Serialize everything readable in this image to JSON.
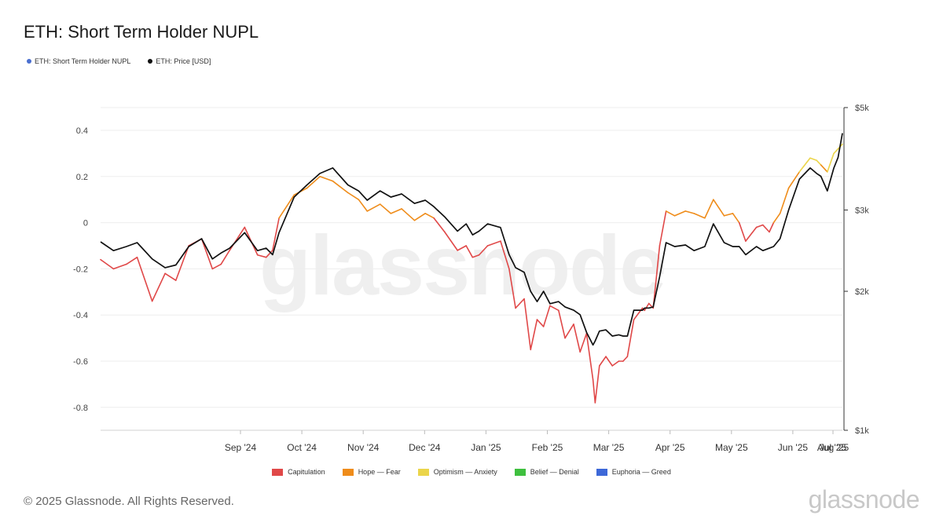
{
  "page": {
    "footer": "© 2025 Glassnode. All Rights Reserved.",
    "brand": "glassnode",
    "watermark": "glassnode"
  },
  "chart_data": {
    "type": "line",
    "title": "ETH: Short Term Holder NUPL",
    "legend": [
      {
        "label": "ETH: Short Term Holder NUPL",
        "color": "#4a6fd0"
      },
      {
        "label": "ETH: Price [USD]",
        "color": "#111111"
      }
    ],
    "zones": [
      {
        "label": "Capitulation",
        "color": "#e04848"
      },
      {
        "label": "Hope — Fear",
        "color": "#ef8c1a"
      },
      {
        "label": "Optimism — Anxiety",
        "color": "#ebd54a"
      },
      {
        "label": "Belief — Denial",
        "color": "#3fc03f"
      },
      {
        "label": "Euphoria — Greed",
        "color": "#3d68d8"
      }
    ],
    "x_ticks": [
      "Sep '24",
      "Oct '24",
      "Nov '24",
      "Dec '24",
      "Jan '25",
      "Feb '25",
      "Mar '25",
      "Apr '25",
      "May '25",
      "Jun '25",
      "Jul '25",
      "Aug '25"
    ],
    "x_range": [
      0,
      345
    ],
    "x_tick_positions": [
      20,
      50,
      81,
      111,
      142,
      173,
      201,
      232,
      262,
      293,
      323,
      354
    ],
    "left_axis": {
      "ticks": [
        "0.4",
        "0.2",
        "0",
        "-0.2",
        "-0.4",
        "-0.6",
        "-0.8"
      ],
      "tick_values": [
        0.4,
        0.2,
        0,
        -0.2,
        -0.4,
        -0.6,
        -0.8
      ],
      "ylim": [
        -0.9,
        0.5
      ]
    },
    "right_axis": {
      "ticks": [
        "$5k",
        "$3k",
        "$2k",
        "$1k"
      ],
      "tick_values": [
        5000,
        3000,
        2000,
        1000
      ],
      "scale": "log",
      "ylim": [
        1000,
        5000
      ]
    },
    "series": [
      {
        "name": "ETH: Short Term Holder NUPL",
        "x": [
          0,
          6,
          12,
          17,
          24,
          30,
          35,
          41,
          47,
          52,
          56,
          60,
          67,
          73,
          77,
          80,
          83,
          90,
          96,
          102,
          108,
          115,
          120,
          124,
          130,
          135,
          140,
          146,
          151,
          155,
          160,
          166,
          170,
          173,
          176,
          180,
          186,
          190,
          193,
          197,
          200,
          203,
          206,
          209,
          213,
          216,
          220,
          223,
          226,
          229,
          230,
          232,
          235,
          238,
          241,
          243,
          245,
          248,
          252,
          253,
          255,
          257,
          260,
          263,
          267,
          272,
          276,
          281,
          285,
          290,
          294,
          297,
          300,
          305,
          308,
          311,
          313,
          316,
          320,
          325,
          330,
          333,
          335,
          338,
          341,
          343,
          345
        ],
        "values": [
          -0.16,
          -0.2,
          -0.18,
          -0.15,
          -0.34,
          -0.22,
          -0.25,
          -0.1,
          -0.07,
          -0.2,
          -0.18,
          -0.12,
          -0.02,
          -0.14,
          -0.15,
          -0.12,
          0.02,
          0.12,
          0.15,
          0.2,
          0.18,
          0.13,
          0.1,
          0.05,
          0.08,
          0.04,
          0.06,
          0.01,
          0.04,
          0.02,
          -0.04,
          -0.12,
          -0.1,
          -0.15,
          -0.14,
          -0.1,
          -0.08,
          -0.2,
          -0.37,
          -0.33,
          -0.55,
          -0.42,
          -0.45,
          -0.36,
          -0.38,
          -0.5,
          -0.44,
          -0.56,
          -0.48,
          -0.68,
          -0.78,
          -0.62,
          -0.58,
          -0.62,
          -0.6,
          -0.6,
          -0.58,
          -0.42,
          -0.37,
          -0.38,
          -0.35,
          -0.37,
          -0.1,
          0.05,
          0.03,
          0.05,
          0.04,
          0.02,
          0.1,
          0.03,
          0.04,
          0.0,
          -0.08,
          -0.02,
          -0.01,
          -0.04,
          0.0,
          0.04,
          0.15,
          0.22,
          0.28,
          0.27,
          0.25,
          0.22,
          0.3,
          0.32,
          0.34
        ],
        "zone_color_by_value": true
      },
      {
        "name": "ETH: Price [USD]",
        "x": [
          0,
          6,
          12,
          17,
          24,
          30,
          35,
          41,
          47,
          52,
          56,
          60,
          67,
          73,
          77,
          80,
          83,
          90,
          96,
          102,
          108,
          115,
          120,
          124,
          130,
          135,
          140,
          146,
          151,
          155,
          160,
          166,
          170,
          173,
          176,
          180,
          186,
          190,
          193,
          197,
          200,
          203,
          206,
          209,
          213,
          216,
          220,
          223,
          226,
          229,
          230,
          232,
          235,
          238,
          241,
          243,
          245,
          248,
          252,
          253,
          255,
          257,
          260,
          263,
          267,
          272,
          276,
          281,
          285,
          290,
          294,
          297,
          300,
          305,
          308,
          311,
          313,
          316,
          320,
          325,
          330,
          333,
          335,
          338,
          341,
          343,
          345
        ],
        "values": [
          2560,
          2450,
          2500,
          2550,
          2350,
          2250,
          2280,
          2500,
          2600,
          2350,
          2420,
          2480,
          2680,
          2450,
          2480,
          2400,
          2680,
          3200,
          3400,
          3600,
          3700,
          3400,
          3300,
          3150,
          3300,
          3200,
          3250,
          3100,
          3150,
          3050,
          2900,
          2700,
          2800,
          2650,
          2700,
          2800,
          2750,
          2400,
          2250,
          2200,
          2000,
          1900,
          2000,
          1880,
          1900,
          1850,
          1820,
          1780,
          1630,
          1530,
          1560,
          1640,
          1650,
          1600,
          1610,
          1600,
          1600,
          1820,
          1820,
          1840,
          1840,
          1850,
          2150,
          2550,
          2500,
          2520,
          2450,
          2500,
          2800,
          2550,
          2500,
          2500,
          2400,
          2500,
          2450,
          2480,
          2500,
          2600,
          3000,
          3500,
          3700,
          3600,
          3550,
          3300,
          3700,
          3900,
          4400
        ]
      }
    ]
  }
}
